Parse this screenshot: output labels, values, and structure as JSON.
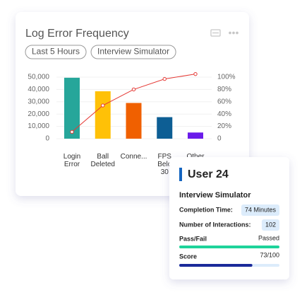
{
  "chart_data": {
    "type": "bar",
    "title": "Log Error Frequency",
    "filters": [
      "Last 5 Hours",
      "Interview Simulator"
    ],
    "categories": [
      "Login Error",
      "Ball Deleted",
      "Conne...",
      "FPS Belo 30",
      "Other"
    ],
    "series": [
      {
        "type": "bar",
        "colors": [
          "#26a69a",
          "#ffc107",
          "#f06000",
          "#0d5e94",
          "#6a1bea"
        ],
        "values": [
          49500,
          38500,
          29000,
          17500,
          5000
        ]
      },
      {
        "type": "line",
        "axis": "y2",
        "color": "#e53935",
        "values": [
          11,
          54,
          80,
          97,
          105
        ]
      }
    ],
    "ylim": [
      0,
      50000
    ],
    "yticks": [
      0,
      {
        "value": 10000,
        "label": "10,000"
      },
      {
        "value": 20000,
        "label": "20,000"
      },
      {
        "value": 30000,
        "label": "30,000"
      },
      {
        "value": 40000,
        "label": "40,000"
      },
      {
        "value": 50000,
        "label": "50,000"
      }
    ],
    "y2lim": [
      0,
      100
    ],
    "y2ticks": [
      0,
      {
        "value": 20,
        "label": "20%"
      },
      {
        "value": 40,
        "label": "40%"
      },
      {
        "value": 60,
        "label": "60%"
      },
      {
        "value": 80,
        "label": "80%"
      },
      {
        "value": 100,
        "label": "100%"
      }
    ],
    "grid": true
  },
  "card": {
    "title": "User 24",
    "subtitle": "Interview Simulator",
    "rows": [
      {
        "label": "Completion Time:",
        "value": "74 Minutes"
      },
      {
        "label": "Number of Interactions:",
        "value": "102"
      }
    ],
    "pass": {
      "label": "Pass/Fail",
      "value": "Passed"
    },
    "score": {
      "label": "Score",
      "value": 73,
      "max": 100,
      "value_label": "73/100"
    }
  }
}
